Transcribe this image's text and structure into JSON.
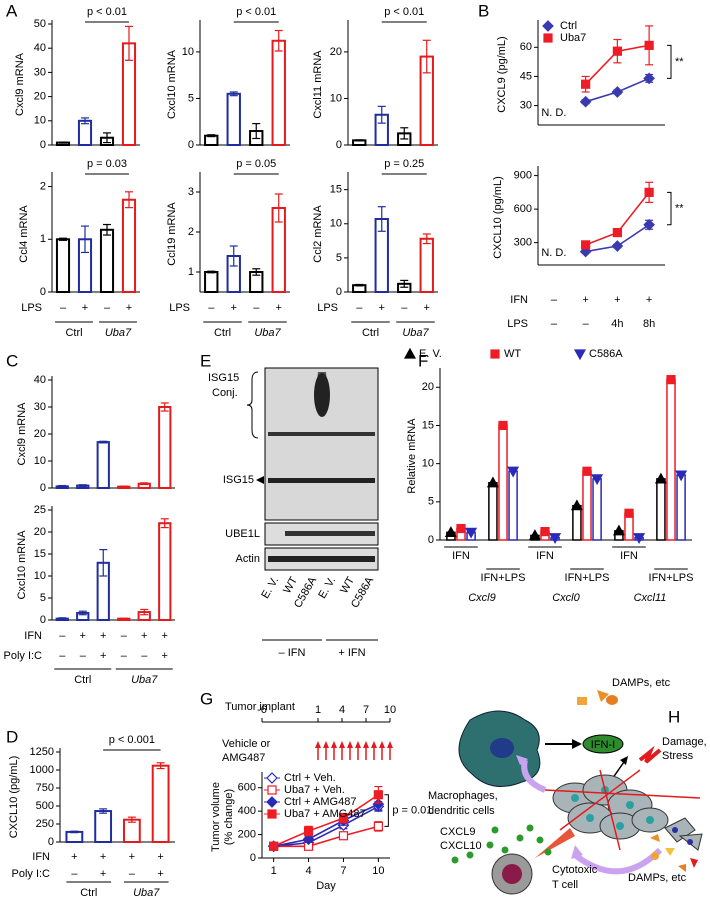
{
  "panel_labels": [
    "A",
    "B",
    "C",
    "D",
    "E",
    "F",
    "G",
    "H"
  ],
  "chart_data": [
    {
      "type": "bar",
      "ylabel": "Cxcl9 mRNA",
      "values": [
        1,
        10,
        3,
        42
      ],
      "errors": [
        0.2,
        1.2,
        2,
        7
      ],
      "colors": [
        "#000000",
        "#1f2d9e",
        "#000000",
        "#e41a1c"
      ],
      "ylim": [
        0,
        50
      ],
      "yticks": [
        0,
        10,
        20,
        30,
        40,
        50
      ],
      "annotation": "p < 0.01"
    },
    {
      "type": "bar",
      "ylabel": "Cxcl10 mRNA",
      "values": [
        1,
        5.5,
        1.5,
        11.2
      ],
      "errors": [
        0.1,
        0.2,
        0.8,
        1.1
      ],
      "colors": [
        "#000000",
        "#1f2d9e",
        "#000000",
        "#e41a1c"
      ],
      "ylim": [
        0,
        13
      ],
      "yticks": [
        0,
        5,
        10
      ],
      "annotation": "p < 0.01"
    },
    {
      "type": "bar",
      "ylabel": "Cxcl11 mRNA",
      "values": [
        1,
        6.5,
        2.5,
        19
      ],
      "errors": [
        0.1,
        1.8,
        1.2,
        3.5
      ],
      "colors": [
        "#000000",
        "#1f2d9e",
        "#000000",
        "#e41a1c"
      ],
      "ylim": [
        0,
        26
      ],
      "yticks": [
        0,
        10,
        20
      ],
      "annotation": "p < 0.01"
    },
    {
      "type": "bar",
      "ylabel": "Ccl4 mRNA",
      "values": [
        1,
        1,
        1.18,
        1.75
      ],
      "errors": [
        0.02,
        0.25,
        0.1,
        0.15
      ],
      "colors": [
        "#000000",
        "#1f2d9e",
        "#000000",
        "#e41a1c"
      ],
      "ylim": [
        0,
        2.2
      ],
      "yticks": [
        0,
        1,
        2
      ],
      "annotation": "p = 0.03",
      "rows": [
        {
          "label": "LPS",
          "values": [
            "–",
            "+",
            "–",
            "+"
          ]
        }
      ],
      "groups": [
        "Ctrl",
        "Uba7"
      ]
    },
    {
      "type": "bar",
      "ylabel": "Ccl19 mRNA",
      "values": [
        1,
        1.4,
        1,
        2.6
      ],
      "errors": [
        0.02,
        0.25,
        0.08,
        0.35
      ],
      "colors": [
        "#000000",
        "#1f2d9e",
        "#000000",
        "#e41a1c"
      ],
      "ylim": [
        0.5,
        3.4
      ],
      "yticks": [
        1,
        2,
        3
      ],
      "annotation": "p = 0.05",
      "rows": [
        {
          "label": "LPS",
          "values": [
            "–",
            "+",
            "–",
            "+"
          ]
        }
      ],
      "groups": [
        "Ctrl",
        "Uba7"
      ]
    },
    {
      "type": "bar",
      "ylabel": "Ccl2 mRNA",
      "values": [
        1,
        10.7,
        1.2,
        7.8
      ],
      "errors": [
        0.1,
        1.8,
        0.5,
        0.7
      ],
      "colors": [
        "#000000",
        "#1f2d9e",
        "#000000",
        "#e41a1c"
      ],
      "ylim": [
        0,
        17
      ],
      "yticks": [
        0,
        5,
        10,
        15
      ],
      "annotation": "p = 0.25",
      "rows": [
        {
          "label": "LPS",
          "values": [
            "–",
            "+",
            "–",
            "+"
          ]
        }
      ],
      "groups": [
        "Ctrl",
        "Uba7"
      ]
    },
    {
      "type": "line",
      "ylabel": "CXCL9 (pg/mL)",
      "series": [
        {
          "name": "Ctrl",
          "color": "#3a3ab0",
          "marker": "diamond",
          "values": [
            null,
            32,
            37,
            44
          ],
          "errors": [
            null,
            1,
            1,
            2
          ]
        },
        {
          "name": "Uba7",
          "color": "#ee1c25",
          "marker": "square",
          "values": [
            null,
            41,
            58,
            61
          ],
          "errors": [
            null,
            4,
            6,
            10
          ]
        }
      ],
      "ylim": [
        20,
        72
      ],
      "yticks": [
        30,
        45,
        60
      ],
      "annotations": [
        "N. D.",
        "**"
      ],
      "legend": true
    },
    {
      "type": "line",
      "ylabel": "CXCL10 (pg/mL)",
      "series": [
        {
          "name": "Ctrl",
          "color": "#3a3ab0",
          "marker": "diamond",
          "values": [
            null,
            220,
            270,
            460
          ],
          "errors": [
            null,
            10,
            15,
            40
          ]
        },
        {
          "name": "Uba7",
          "color": "#ee1c25",
          "marker": "square",
          "values": [
            null,
            280,
            390,
            750
          ],
          "errors": [
            null,
            20,
            30,
            90
          ]
        }
      ],
      "ylim": [
        100,
        950
      ],
      "yticks": [
        300,
        600,
        900
      ],
      "annotations": [
        "N. D.",
        "**"
      ],
      "rows": [
        {
          "label": "IFN",
          "values": [
            "–",
            "+",
            "+",
            "+"
          ]
        },
        {
          "label": "LPS",
          "values": [
            "–",
            "–",
            "4h",
            "8h"
          ]
        }
      ]
    },
    {
      "type": "bar",
      "ylabel": "Cxcl9 mRNA",
      "values": [
        0.6,
        0.9,
        17,
        0.5,
        1.6,
        30
      ],
      "errors": [
        0.3,
        0.3,
        0.3,
        0.2,
        0.3,
        1.5
      ],
      "colors": [
        "#1f2d9e",
        "#1f2d9e",
        "#1f2d9e",
        "#e41a1c",
        "#e41a1c",
        "#e41a1c"
      ],
      "ylim": [
        0,
        40
      ],
      "yticks": [
        0,
        10,
        20,
        30,
        40
      ]
    },
    {
      "type": "bar",
      "ylabel": "Cxcl10 mRNA",
      "values": [
        0.3,
        1.6,
        13,
        0.3,
        1.8,
        22
      ],
      "errors": [
        0.2,
        0.4,
        3,
        0.1,
        0.6,
        1
      ],
      "colors": [
        "#1f2d9e",
        "#1f2d9e",
        "#1f2d9e",
        "#e41a1c",
        "#e41a1c",
        "#e41a1c"
      ],
      "ylim": [
        0,
        25
      ],
      "yticks": [
        0,
        5,
        10,
        15,
        20,
        25
      ],
      "rows": [
        {
          "label": "IFN",
          "values": [
            "–",
            "+",
            "+",
            "–",
            "+",
            "+"
          ]
        },
        {
          "label": "Poly I:C",
          "values": [
            "–",
            "–",
            "+",
            "–",
            "–",
            "+"
          ]
        }
      ],
      "groups": [
        "Ctrl",
        "Uba7"
      ]
    },
    {
      "type": "bar",
      "ylabel": "CXCL10 (pg/mL)",
      "values": [
        140,
        430,
        310,
        1060
      ],
      "errors": [
        10,
        30,
        35,
        40
      ],
      "colors": [
        "#1f2d9e",
        "#1f2d9e",
        "#e41a1c",
        "#e41a1c"
      ],
      "ylim": [
        0,
        1250
      ],
      "yticks": [
        0,
        250,
        500,
        750,
        1000,
        1250
      ],
      "annotation": "p < 0.001",
      "rows": [
        {
          "label": "IFN",
          "values": [
            "+",
            "+",
            "+",
            "+"
          ]
        },
        {
          "label": "Poly I:C",
          "values": [
            "–",
            "+",
            "–",
            "+"
          ]
        }
      ],
      "groups": [
        "Ctrl",
        "Uba7"
      ]
    },
    {
      "type": "grouped-bar",
      "ylabel": "Relative mRNA",
      "series": [
        {
          "name": "E. V.",
          "color": "#000000",
          "marker": "triangle",
          "values": [
            1,
            7.5,
            0.6,
            4.5,
            1.2,
            8
          ]
        },
        {
          "name": "WT",
          "color": "#ee1c25",
          "marker": "square",
          "values": [
            1.5,
            15,
            1.1,
            9,
            3.5,
            21
          ]
        },
        {
          "name": "C586A",
          "color": "#2a2ab8",
          "marker": "tri-down",
          "values": [
            1,
            9,
            0.3,
            8,
            0.3,
            8.5
          ]
        }
      ],
      "ylim": [
        0,
        22
      ],
      "yticks": [
        0,
        5,
        10,
        15,
        20
      ],
      "conditions": [
        "IFN",
        "IFN+LPS",
        "IFN",
        "IFN+LPS",
        "IFN",
        "IFN+LPS"
      ],
      "genes": [
        "Cxcl9",
        "Cxcl0",
        "Cxcl11"
      ]
    },
    {
      "type": "line",
      "ylabel": [
        "Tumor volume",
        "(% change)"
      ],
      "xlabel": "Day",
      "x": [
        1,
        4,
        7,
        10
      ],
      "xlim": [
        0,
        11
      ],
      "xticks": [
        1,
        4,
        7,
        10
      ],
      "series": [
        {
          "name": "Ctrl + Veh.",
          "color": "#2a2ab8",
          "marker": "diamond-open",
          "values": [
            100,
            130,
            280,
            440
          ],
          "errors": [
            20,
            20,
            30,
            40
          ]
        },
        {
          "name": "Uba7 + Veh.",
          "color": "#ee1c25",
          "marker": "square-open",
          "values": [
            100,
            100,
            190,
            270
          ],
          "errors": [
            20,
            20,
            30,
            40
          ]
        },
        {
          "name": "Ctrl + AMG487",
          "color": "#2a2ab8",
          "marker": "diamond",
          "values": [
            100,
            160,
            320,
            460
          ],
          "errors": [
            20,
            25,
            40,
            50
          ]
        },
        {
          "name": "Uba7 + AMG487",
          "color": "#ee1c25",
          "marker": "square",
          "values": [
            100,
            230,
            340,
            540
          ],
          "errors": [
            25,
            40,
            40,
            70
          ]
        }
      ],
      "ylim": [
        0,
        700
      ],
      "yticks": [
        0,
        200,
        400,
        600
      ],
      "annotation": "p = 0.01",
      "legend": true
    }
  ],
  "timeline": {
    "title": "Tumor implant",
    "ticks": [
      -6,
      1,
      4,
      7,
      10
    ],
    "treatment": [
      "Vehicle or",
      "AMG487"
    ]
  },
  "blot": {
    "conjugate": [
      "ISG15",
      "Conj."
    ],
    "bands": [
      "ISG15",
      "UBE1L",
      "Actin"
    ],
    "lanes": [
      "E. V.",
      "WT",
      "C586A",
      "E. V.",
      "WT",
      "C586A"
    ],
    "treatments": [
      "– IFN",
      "+ IFN"
    ]
  },
  "diagram": {
    "damps_top": "DAMPs, etc",
    "ifn": "IFN-I",
    "damage": [
      "Damage,",
      "Stress"
    ],
    "macrophages": [
      "Macrophages,",
      "dendritic cells"
    ],
    "chemokines": [
      "CXCL9",
      "CXCL10"
    ],
    "damps_bottom": "DAMPs, etc",
    "tcell": [
      "Cytotoxic",
      "T cell"
    ]
  }
}
